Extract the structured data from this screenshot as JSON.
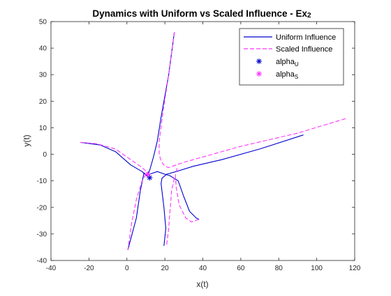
{
  "chart_data": {
    "type": "line",
    "title_main": "Dynamics with Uniform vs Scaled Influence - Ex",
    "title_suffix": "2",
    "xlabel": "x(t)",
    "ylabel": "y(t)",
    "xlim": [
      -40,
      120
    ],
    "ylim": [
      -40,
      50
    ],
    "xticks": [
      -40,
      -20,
      0,
      20,
      40,
      60,
      80,
      100,
      120
    ],
    "yticks": [
      -40,
      -30,
      -20,
      -10,
      0,
      10,
      20,
      30,
      40,
      50
    ],
    "grid": false,
    "legend_position": "top-right",
    "legend": {
      "uniform_label": "Uniform Influence",
      "scaled_label": "Scaled Influence",
      "alpha_u_base": "alpha",
      "alpha_u_sub": "U",
      "alpha_s_base": "alpha",
      "alpha_s_sub": "S"
    },
    "colors": {
      "uniform": "#0000cc",
      "scaled": "#ff33ff",
      "axes": "#262626"
    },
    "series": [
      {
        "name": "Uniform Influence",
        "style": "solid",
        "trajectories": [
          [
            [
              25,
              46
            ],
            [
              22,
              30
            ],
            [
              18,
              14
            ],
            [
              16,
              5
            ],
            [
              14,
              -1
            ],
            [
              12,
              -6
            ],
            [
              10.5,
              -8
            ],
            [
              9,
              -7
            ],
            [
              7,
              -14
            ],
            [
              5,
              -24
            ],
            [
              0.5,
              -36
            ]
          ],
          [
            [
              -24.5,
              4.5
            ],
            [
              -14,
              3.5
            ],
            [
              -6,
              1
            ],
            [
              2,
              -4
            ],
            [
              8,
              -6.5
            ],
            [
              11,
              -8.5
            ]
          ],
          [
            [
              93,
              7.3
            ],
            [
              70,
              2
            ],
            [
              50,
              -2
            ],
            [
              35,
              -4.5
            ],
            [
              26,
              -6.5
            ],
            [
              21,
              -7.5
            ],
            [
              18.5,
              -9
            ],
            [
              18,
              -11
            ],
            [
              19.5,
              -20
            ],
            [
              20.5,
              -28
            ],
            [
              19.5,
              -34.5
            ]
          ],
          [
            [
              38,
              -24.5
            ],
            [
              36.5,
              -24
            ],
            [
              33,
              -21.5
            ],
            [
              30,
              -16
            ],
            [
              27,
              -10
            ],
            [
              22.5,
              -8
            ],
            [
              20,
              -7.5
            ],
            [
              16,
              -6.5
            ],
            [
              12,
              -7.5
            ]
          ]
        ]
      },
      {
        "name": "Scaled Influence",
        "style": "dashed",
        "trajectories": [
          [
            [
              25,
              46
            ],
            [
              22,
              30
            ],
            [
              19,
              16
            ],
            [
              17,
              5
            ],
            [
              17,
              0
            ],
            [
              18,
              -2.5
            ],
            [
              20,
              -4.5
            ],
            [
              22,
              -5
            ],
            [
              30,
              -3
            ],
            [
              60,
              3
            ],
            [
              90,
              8
            ],
            [
              115.5,
              13.5
            ]
          ],
          [
            [
              -24.5,
              4.5
            ],
            [
              -16,
              4
            ],
            [
              -6,
              2
            ],
            [
              2,
              -2
            ],
            [
              8,
              -5
            ],
            [
              11,
              -7
            ],
            [
              12,
              -8
            ]
          ],
          [
            [
              10,
              -7.5
            ],
            [
              8,
              -10
            ],
            [
              5,
              -17
            ],
            [
              2.5,
              -26
            ],
            [
              0.5,
              -36
            ]
          ],
          [
            [
              38,
              -24.5
            ],
            [
              34,
              -25.5
            ],
            [
              31,
              -24
            ],
            [
              27.5,
              -19
            ],
            [
              26,
              -12.5
            ],
            [
              25.5,
              -8
            ],
            [
              26.5,
              -5
            ]
          ],
          [
            [
              21,
              -34
            ],
            [
              22,
              -28
            ],
            [
              22.5,
              -23
            ],
            [
              23,
              -19
            ],
            [
              23.5,
              -14
            ],
            [
              25,
              -9
            ]
          ]
        ]
      }
    ],
    "markers": [
      {
        "name": "alpha_U",
        "x": 12,
        "y": -8.8,
        "color": "#0000cc",
        "symbol": "*"
      },
      {
        "name": "alpha_S",
        "x": 11,
        "y": -7.5,
        "color": "#ff33ff",
        "symbol": "*"
      }
    ]
  }
}
